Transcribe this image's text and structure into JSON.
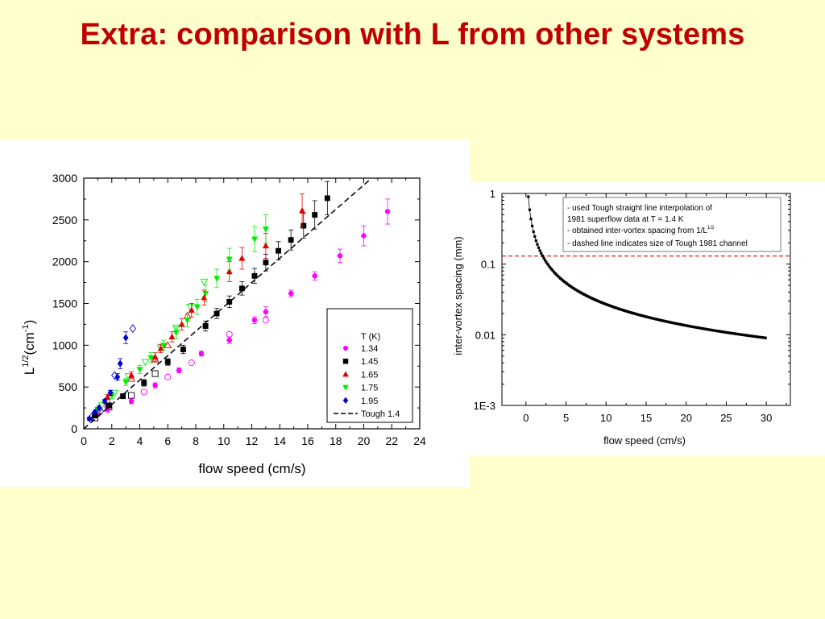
{
  "slide": {
    "title": "Extra: comparison with L from other systems"
  },
  "chart_data": [
    {
      "type": "scatter",
      "xlabel": "flow speed (cm/s)",
      "ylabel_main": "L",
      "ylabel_sup1": "1/2",
      "ylabel_mid": "(cm",
      "ylabel_sup2": "-1",
      "ylabel_end": ")",
      "xlim": [
        0,
        24
      ],
      "ylim": [
        0,
        3000
      ],
      "xticks": [
        0,
        2,
        4,
        6,
        8,
        10,
        12,
        14,
        16,
        18,
        20,
        22,
        24
      ],
      "yticks": [
        0,
        500,
        1000,
        1500,
        2000,
        2500,
        3000
      ],
      "grid": false,
      "legend": {
        "title": "T (K)",
        "placement": "lower-right",
        "entries": [
          "1.34",
          "1.45",
          "1.65",
          "1.75",
          "1.95",
          "Tough 1.4"
        ]
      },
      "series": [
        {
          "name": "1.34",
          "marker": "circle",
          "color": "#ff00ff",
          "x": [
            1.0,
            1.7,
            3.4,
            5.1,
            6.8,
            8.4,
            10.4,
            12.2,
            13.0,
            14.8,
            16.5,
            18.3,
            20.0,
            21.7
          ],
          "y": [
            180,
            230,
            330,
            520,
            700,
            900,
            1060,
            1300,
            1400,
            1620,
            1830,
            2070,
            2310,
            2600
          ],
          "err": [
            30,
            30,
            30,
            30,
            30,
            30,
            40,
            40,
            60,
            40,
            50,
            80,
            120,
            150
          ]
        },
        {
          "name": "1.45",
          "marker": "square",
          "color": "#000000",
          "x": [
            0.8,
            1.8,
            2.8,
            4.3,
            6.0,
            7.1,
            8.7,
            9.5,
            10.4,
            11.3,
            12.2,
            13.0,
            13.9,
            14.8,
            15.7,
            16.5,
            17.4
          ],
          "y": [
            160,
            280,
            390,
            550,
            800,
            950,
            1230,
            1380,
            1520,
            1680,
            1830,
            1990,
            2130,
            2260,
            2430,
            2560,
            2760
          ],
          "err": [
            30,
            30,
            30,
            40,
            40,
            50,
            60,
            60,
            70,
            80,
            90,
            100,
            110,
            120,
            150,
            170,
            200
          ]
        },
        {
          "name": "1.65",
          "marker": "triangle-up",
          "color": "#e00000",
          "x": [
            1.7,
            3.4,
            5.1,
            5.5,
            6.3,
            7.0,
            7.7,
            8.6,
            10.4,
            11.3,
            13.0,
            15.6
          ],
          "y": [
            380,
            640,
            860,
            960,
            1100,
            1250,
            1420,
            1570,
            1880,
            2040,
            2190,
            2610
          ],
          "err": [
            30,
            40,
            50,
            50,
            60,
            70,
            80,
            90,
            120,
            130,
            150,
            200
          ]
        },
        {
          "name": "1.75",
          "marker": "triangle-down",
          "color": "#00ee00",
          "x": [
            1.0,
            2.0,
            3.0,
            4.0,
            4.8,
            5.7,
            6.6,
            7.4,
            8.1,
            8.7,
            9.5,
            10.4,
            12.2,
            13.0
          ],
          "y": [
            230,
            400,
            560,
            710,
            850,
            1000,
            1150,
            1300,
            1460,
            1620,
            1800,
            2030,
            2270,
            2390
          ],
          "err": [
            30,
            40,
            40,
            50,
            60,
            60,
            70,
            80,
            90,
            100,
            110,
            130,
            150,
            170
          ]
        },
        {
          "name": "1.95",
          "marker": "diamond",
          "color": "#0000cc",
          "x": [
            0.4,
            0.8,
            1.1,
            1.5,
            1.9,
            2.4,
            2.6,
            3.0
          ],
          "y": [
            120,
            200,
            250,
            330,
            430,
            620,
            780,
            1090
          ],
          "err": [
            20,
            20,
            25,
            25,
            30,
            40,
            60,
            70
          ]
        }
      ],
      "open_points": [
        {
          "series": "1.34",
          "x": [
            1.0,
            1.7,
            4.3,
            6.0,
            7.7,
            10.4,
            13.0
          ],
          "y": [
            220,
            260,
            440,
            620,
            790,
            1130,
            1300
          ]
        },
        {
          "series": "1.45",
          "x": [
            0.8,
            1.8,
            3.4,
            5.1
          ],
          "y": [
            130,
            260,
            400,
            660
          ]
        },
        {
          "series": "1.65",
          "x": [
            1.7,
            3.4,
            5.1,
            6.0,
            7.4
          ],
          "y": [
            330,
            600,
            830,
            1000,
            1350
          ]
        },
        {
          "series": "1.75",
          "x": [
            1.3,
            2.2,
            3.2,
            4.4,
            5.5,
            6.6,
            7.6,
            8.6
          ],
          "y": [
            280,
            430,
            630,
            800,
            970,
            1210,
            1460,
            1760
          ]
        },
        {
          "series": "1.95",
          "x": [
            0.6,
            1.2,
            2.2,
            3.5
          ],
          "y": [
            150,
            210,
            640,
            1200
          ]
        }
      ],
      "fit_line": {
        "name": "Tough 1.4",
        "style": "dashed",
        "color": "#000000",
        "x": [
          0,
          20.5
        ],
        "y": [
          0,
          2990
        ]
      }
    },
    {
      "type": "line",
      "xlabel": "flow speed (cm/s)",
      "ylabel": "inter-vortex spacing (mm)",
      "xlim": [
        -3,
        33
      ],
      "ylim": [
        0.001,
        1
      ],
      "yscale": "log",
      "xticks": [
        0,
        5,
        10,
        15,
        20,
        25,
        30
      ],
      "yticks": [
        {
          "value": 1,
          "label": "1"
        },
        {
          "value": 0.1,
          "label": "0.1"
        },
        {
          "value": 0.01,
          "label": "0.01"
        },
        {
          "value": 0.001,
          "label": "1E-3"
        }
      ],
      "grid": false,
      "curve": {
        "formula": "d = 0.27 / v (mm, v in cm/s)",
        "x_start": 0.3,
        "x_end": 30,
        "marker": "square",
        "color": "#000000"
      },
      "reference_line": {
        "value": 0.13,
        "style": "dashed",
        "color": "#e00000"
      },
      "annotation": {
        "line1": "- used Tough straight line interpolation of",
        "line2": "1981 superflow data at T = 1.4 K",
        "line3_a": "- obtained inter-vortex spacing from 1/L",
        "line3_sup": "1/2",
        "line4": "- dashed line indicates size of Tough 1981 channel"
      }
    }
  ]
}
